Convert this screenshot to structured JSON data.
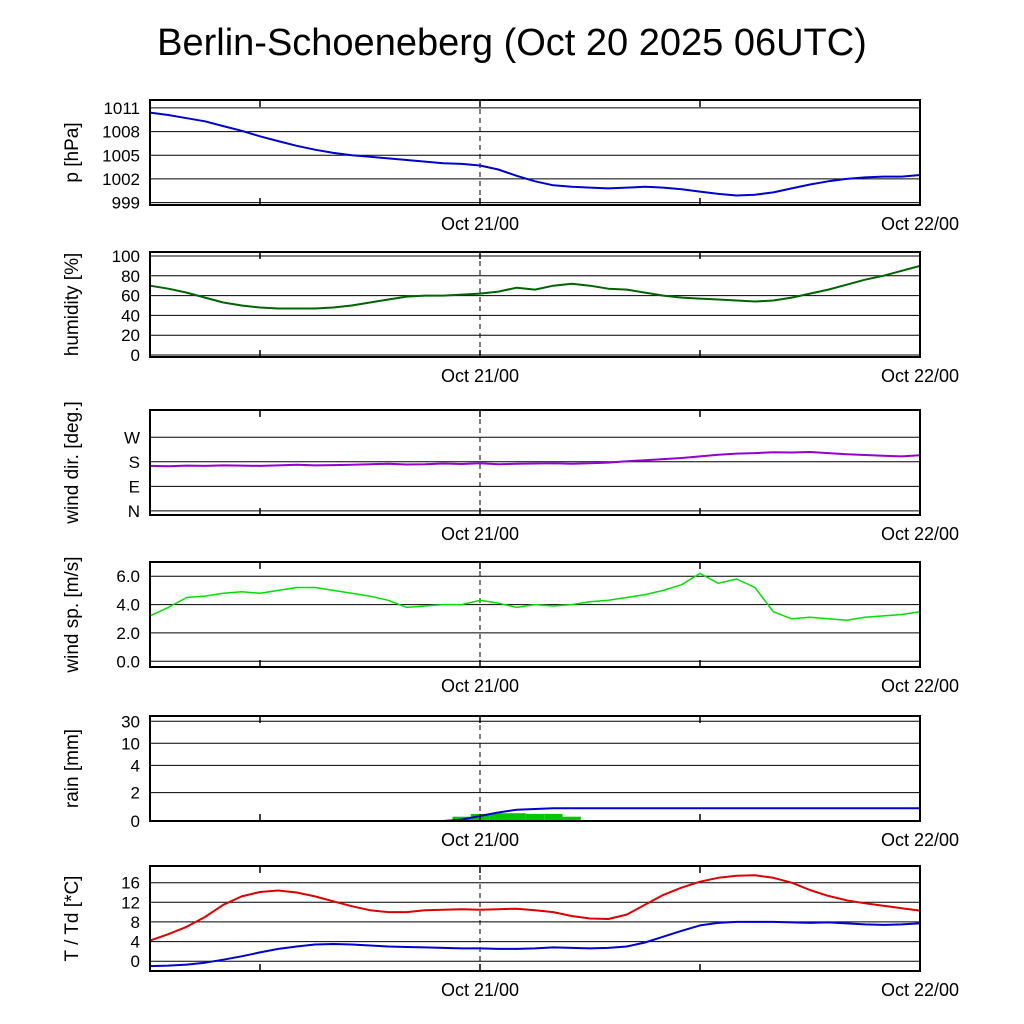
{
  "title": "Berlin-Schoeneberg (Oct 20 2025 06UTC)",
  "x_axis": {
    "start_hour": 6,
    "end_hour": 48,
    "tick_hours": [
      12,
      24,
      36,
      48
    ],
    "dashed_hour": 24,
    "labels": [
      {
        "hour": 24,
        "text": "Oct 21/00"
      },
      {
        "hour": 48,
        "text": "Oct 22/00"
      }
    ]
  },
  "hours": [
    6,
    7,
    8,
    9,
    10,
    11,
    12,
    13,
    14,
    15,
    16,
    17,
    18,
    19,
    20,
    21,
    22,
    23,
    24,
    25,
    26,
    27,
    28,
    29,
    30,
    31,
    32,
    33,
    34,
    35,
    36,
    37,
    38,
    39,
    40,
    41,
    42,
    43,
    44,
    45,
    46,
    47,
    48
  ],
  "chart_data": [
    {
      "id": "pressure",
      "type": "line",
      "ylabel": "p [hPa]",
      "ylim": [
        998.7,
        1012.0
      ],
      "yticks": [
        {
          "v": 999,
          "label": "999"
        },
        {
          "v": 1002,
          "label": "1002"
        },
        {
          "v": 1005,
          "label": "1005"
        },
        {
          "v": 1008,
          "label": "1008"
        },
        {
          "v": 1011,
          "label": "1011"
        }
      ],
      "series": [
        {
          "name": "pressure",
          "color": "#0000cd",
          "width": 2,
          "values": [
            1010.4,
            1010.1,
            1009.7,
            1009.3,
            1008.7,
            1008.1,
            1007.4,
            1006.8,
            1006.2,
            1005.7,
            1005.3,
            1005.0,
            1004.8,
            1004.6,
            1004.4,
            1004.2,
            1004.0,
            1003.9,
            1003.7,
            1003.2,
            1002.4,
            1001.7,
            1001.2,
            1001.0,
            1000.9,
            1000.8,
            1000.9,
            1001.0,
            1000.9,
            1000.7,
            1000.4,
            1000.1,
            999.9,
            1000.0,
            1000.3,
            1000.8,
            1001.3,
            1001.7,
            1002.0,
            1002.2,
            1002.3,
            1002.3,
            1002.5
          ]
        }
      ]
    },
    {
      "id": "humidity",
      "type": "line",
      "ylabel": "humidity [%]",
      "ylim": [
        -2,
        104
      ],
      "yticks": [
        {
          "v": 0,
          "label": "0"
        },
        {
          "v": 20,
          "label": "20"
        },
        {
          "v": 40,
          "label": "40"
        },
        {
          "v": 60,
          "label": "60"
        },
        {
          "v": 80,
          "label": "80"
        },
        {
          "v": 100,
          "label": "100"
        }
      ],
      "series": [
        {
          "name": "humidity",
          "color": "#006400",
          "width": 2,
          "values": [
            70,
            67,
            63,
            58,
            53,
            50,
            48,
            47,
            47,
            47,
            48,
            50,
            53,
            56,
            59,
            60,
            60,
            61,
            62,
            64,
            68,
            66,
            70,
            72,
            70,
            67,
            66,
            63,
            60,
            58,
            57,
            56,
            55,
            54,
            55,
            58,
            62,
            66,
            71,
            76,
            80,
            85,
            90
          ]
        }
      ]
    },
    {
      "id": "wind-direction",
      "type": "line",
      "ylabel": "wind dir. [deg.]",
      "ylim": [
        -15,
        370
      ],
      "yticks": [
        {
          "v": 0,
          "label": "N"
        },
        {
          "v": 90,
          "label": "E"
        },
        {
          "v": 180,
          "label": "S"
        },
        {
          "v": 270,
          "label": "W"
        }
      ],
      "series": [
        {
          "name": "wind-direction",
          "color": "#9400d3",
          "width": 2,
          "values": [
            165,
            164,
            166,
            165,
            167,
            166,
            165,
            167,
            169,
            167,
            168,
            169,
            171,
            173,
            170,
            171,
            174,
            172,
            175,
            171,
            173,
            174,
            175,
            173,
            175,
            177,
            182,
            186,
            190,
            194,
            200,
            206,
            210,
            212,
            215,
            214,
            216,
            212,
            208,
            205,
            202,
            200,
            204
          ]
        }
      ]
    },
    {
      "id": "wind-speed",
      "type": "line",
      "ylabel": "wind sp. [m/s]",
      "ylim": [
        -0.4,
        7.0
      ],
      "yticks": [
        {
          "v": 0,
          "label": "0.0"
        },
        {
          "v": 2,
          "label": "2.0"
        },
        {
          "v": 4,
          "label": "4.0"
        },
        {
          "v": 6,
          "label": "6.0"
        }
      ],
      "series": [
        {
          "name": "wind-speed",
          "color": "#00e000",
          "width": 1.5,
          "values": [
            3.2,
            3.8,
            4.5,
            4.6,
            4.8,
            4.9,
            4.8,
            5.0,
            5.2,
            5.2,
            5.0,
            4.8,
            4.6,
            4.3,
            3.8,
            3.9,
            4.0,
            4.0,
            4.3,
            4.1,
            3.8,
            4.0,
            3.9,
            4.0,
            4.2,
            4.3,
            4.5,
            4.7,
            5.0,
            5.4,
            6.2,
            5.5,
            5.8,
            5.2,
            3.5,
            3.0,
            3.1,
            3.0,
            2.9,
            3.1,
            3.2,
            3.3,
            3.5
          ]
        }
      ]
    },
    {
      "id": "rain",
      "type": "line",
      "ylabel": "rain [mm]",
      "yscale": "segmented",
      "breakpoints": [
        {
          "v": 0,
          "f": 0.0
        },
        {
          "v": 2,
          "f": 0.27
        },
        {
          "v": 4,
          "f": 0.53
        },
        {
          "v": 10,
          "f": 0.74
        },
        {
          "v": 30,
          "f": 0.95
        }
      ],
      "yticks": [
        {
          "v": 0,
          "label": "0"
        },
        {
          "v": 2,
          "label": "2"
        },
        {
          "v": 4,
          "label": "4"
        },
        {
          "v": 10,
          "label": "10"
        },
        {
          "v": 30,
          "label": "30"
        }
      ],
      "series": [
        {
          "name": "rain-rate",
          "style": "bars",
          "color": "#00c800",
          "values": [
            0,
            0,
            0,
            0,
            0,
            0,
            0,
            0,
            0,
            0,
            0,
            0,
            0,
            0,
            0,
            0,
            0,
            0.3,
            0.5,
            0.55,
            0.55,
            0.5,
            0.5,
            0.3,
            0,
            0,
            0,
            0,
            0,
            0,
            0,
            0,
            0,
            0,
            0,
            0,
            0,
            0,
            0,
            0,
            0,
            0,
            0
          ]
        },
        {
          "name": "rain-accumulated",
          "color": "#0000cd",
          "width": 2,
          "values": [
            0,
            0,
            0,
            0,
            0,
            0,
            0,
            0,
            0,
            0,
            0,
            0,
            0,
            0,
            0,
            0,
            0,
            0.1,
            0.35,
            0.6,
            0.8,
            0.85,
            0.9,
            0.9,
            0.9,
            0.9,
            0.9,
            0.9,
            0.9,
            0.9,
            0.9,
            0.9,
            0.9,
            0.9,
            0.9,
            0.9,
            0.9,
            0.9,
            0.9,
            0.9,
            0.9,
            0.9,
            0.9
          ]
        }
      ]
    },
    {
      "id": "temperature-dewpoint",
      "type": "line",
      "ylabel": "T / Td [*C]",
      "ylim": [
        -2,
        19.4
      ],
      "yticks": [
        {
          "v": 0,
          "label": "0"
        },
        {
          "v": 4,
          "label": "4"
        },
        {
          "v": 8,
          "label": "8"
        },
        {
          "v": 12,
          "label": "12"
        },
        {
          "v": 16,
          "label": "16"
        }
      ],
      "series": [
        {
          "name": "temperature",
          "color": "#dc0000",
          "width": 2,
          "values": [
            4.2,
            5.5,
            7.0,
            9.0,
            11.5,
            13.2,
            14.1,
            14.4,
            14.0,
            13.2,
            12.2,
            11.2,
            10.4,
            10.0,
            10.0,
            10.4,
            10.5,
            10.6,
            10.5,
            10.6,
            10.7,
            10.4,
            10.0,
            9.2,
            8.7,
            8.6,
            9.5,
            11.5,
            13.5,
            15.0,
            16.2,
            17.0,
            17.4,
            17.5,
            17.0,
            16.0,
            14.5,
            13.3,
            12.4,
            11.8,
            11.3,
            10.8,
            10.3
          ]
        },
        {
          "name": "dew-point",
          "color": "#0000cd",
          "width": 2,
          "values": [
            -1.0,
            -0.9,
            -0.7,
            -0.3,
            0.3,
            1.0,
            1.8,
            2.5,
            3.0,
            3.4,
            3.5,
            3.4,
            3.2,
            3.0,
            2.9,
            2.8,
            2.7,
            2.6,
            2.6,
            2.5,
            2.5,
            2.6,
            2.8,
            2.7,
            2.6,
            2.7,
            3.0,
            3.8,
            5.0,
            6.2,
            7.3,
            7.8,
            8.0,
            8.0,
            8.0,
            7.9,
            7.8,
            7.9,
            7.7,
            7.5,
            7.4,
            7.5,
            7.7
          ]
        }
      ]
    }
  ]
}
